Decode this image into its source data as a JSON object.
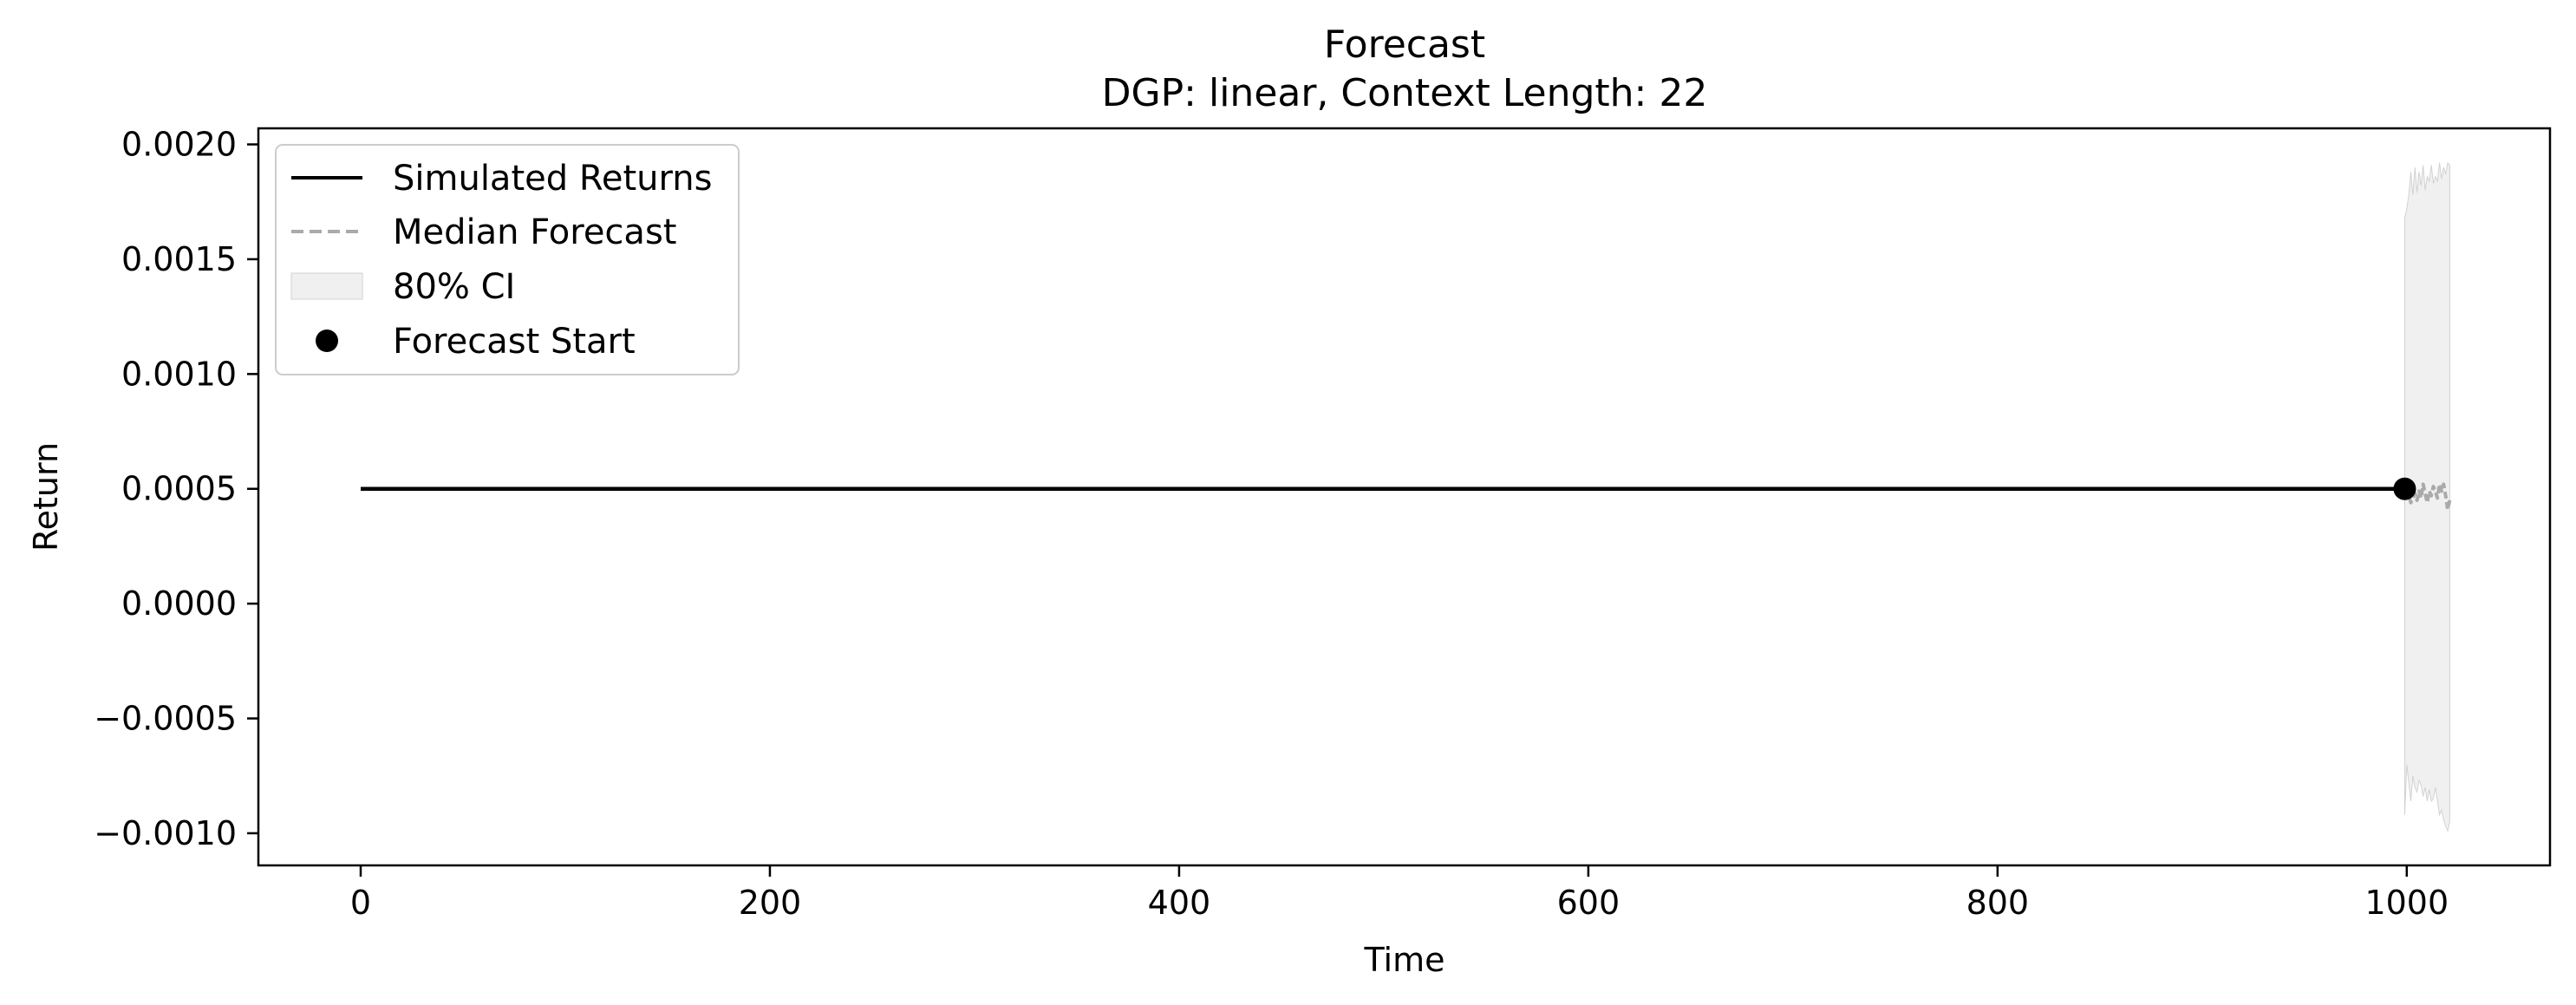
{
  "chart_data": {
    "type": "line",
    "title": "Forecast",
    "subtitle": "DGP: linear, Context Length: 22",
    "xlabel": "Time",
    "ylabel": "Return",
    "xlim": [
      -50,
      1070
    ],
    "ylim": [
      -0.00114,
      0.00207
    ],
    "xticks": [
      0,
      200,
      400,
      600,
      800,
      1000
    ],
    "xtick_labels": [
      "0",
      "200",
      "400",
      "600",
      "800",
      "1000"
    ],
    "yticks": [
      -0.001,
      -0.0005,
      0.0,
      0.0005,
      0.001,
      0.0015,
      0.002
    ],
    "ytick_labels": [
      "−0.0010",
      "−0.0005",
      "0.0000",
      "0.0005",
      "0.0010",
      "0.0015",
      "0.0020"
    ],
    "grid": false,
    "legend_position": "upper-left",
    "colors": {
      "simulated": "#000000",
      "median": "#aaaaaa",
      "ci_fill": "#e6e6e6",
      "ci_edge": "#d2d2d2",
      "marker": "#000000"
    },
    "legend": [
      {
        "key": "simulated",
        "label": "Simulated Returns",
        "style": "line"
      },
      {
        "key": "median",
        "label": "Median Forecast",
        "style": "dashed"
      },
      {
        "key": "ci",
        "label": "80% CI",
        "style": "patch"
      },
      {
        "key": "start",
        "label": "Forecast Start",
        "style": "marker"
      }
    ],
    "series": [
      {
        "name": "Simulated Returns",
        "points": [
          [
            0,
            0.0005
          ],
          [
            999,
            0.0005
          ]
        ]
      },
      {
        "name": "Median Forecast",
        "points": [
          [
            999,
            0.0005
          ],
          [
            1000,
            0.00049
          ],
          [
            1001,
            0.00047
          ],
          [
            1002,
            0.00044
          ],
          [
            1003,
            0.00046
          ],
          [
            1004,
            0.00048
          ],
          [
            1005,
            0.00045
          ],
          [
            1006,
            0.00049
          ],
          [
            1007,
            0.00046
          ],
          [
            1008,
            0.00052
          ],
          [
            1009,
            0.00048
          ],
          [
            1010,
            0.00044
          ],
          [
            1011,
            0.00049
          ],
          [
            1012,
            0.00047
          ],
          [
            1013,
            0.00051
          ],
          [
            1014,
            0.00049
          ],
          [
            1015,
            0.00046
          ],
          [
            1016,
            0.00052
          ],
          [
            1017,
            0.00049
          ],
          [
            1018,
            0.00052
          ],
          [
            1019,
            0.00047
          ],
          [
            1020,
            0.00041
          ],
          [
            1021,
            0.00045
          ]
        ]
      }
    ],
    "ci": {
      "name": "80% CI",
      "x": [
        999,
        1000,
        1001,
        1002,
        1003,
        1004,
        1005,
        1006,
        1007,
        1008,
        1009,
        1010,
        1011,
        1012,
        1013,
        1014,
        1015,
        1016,
        1017,
        1018,
        1019,
        1020,
        1021
      ],
      "upper": [
        0.00168,
        0.00172,
        0.00178,
        0.00188,
        0.00178,
        0.0019,
        0.00179,
        0.00188,
        0.00182,
        0.00191,
        0.0018,
        0.00186,
        0.00184,
        0.00191,
        0.00183,
        0.00186,
        0.00184,
        0.00192,
        0.00185,
        0.0019,
        0.00187,
        0.00192,
        0.00191
      ],
      "lower": [
        -0.00092,
        -0.0007,
        -0.00078,
        -0.00086,
        -0.00075,
        -0.0008,
        -0.00082,
        -0.00077,
        -0.00079,
        -0.00084,
        -0.0008,
        -0.00086,
        -0.00081,
        -0.00086,
        -0.00085,
        -0.0008,
        -0.00086,
        -0.00092,
        -0.0009,
        -0.00094,
        -0.00097,
        -0.00099,
        -0.00095
      ]
    },
    "forecast_start": {
      "name": "Forecast Start",
      "x": 999,
      "y": 0.0005
    }
  }
}
